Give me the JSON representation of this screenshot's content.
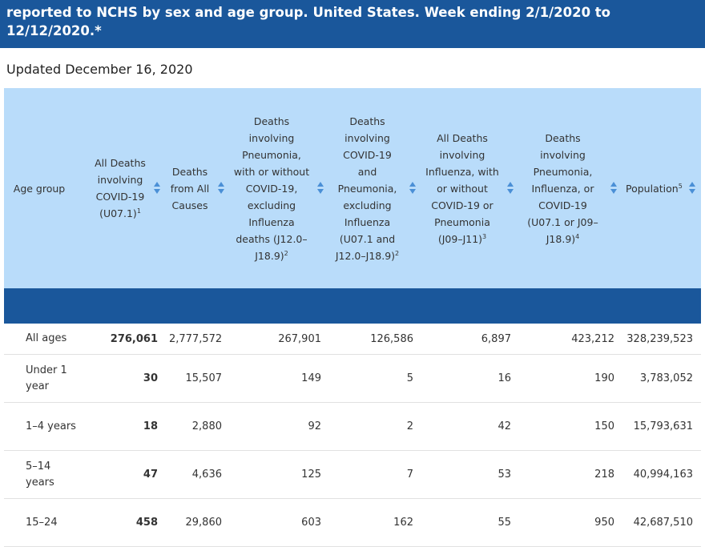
{
  "header": {
    "title": "reported to NCHS by sex and age group. United States. Week ending 2/1/2020 to 12/12/2020.*"
  },
  "updated": "Updated December 16, 2020",
  "columns": [
    {
      "label": "Age group",
      "sup": ""
    },
    {
      "label": "All Deaths involving COVID-19 (U07.1)",
      "sup": "1"
    },
    {
      "label": "Deaths from All Causes",
      "sup": ""
    },
    {
      "label": "Deaths involving Pneumonia, with or without COVID-19, excluding Influenza deaths (J12.0–J18.9)",
      "sup": "2"
    },
    {
      "label": "Deaths involving COVID-19 and Pneumonia, excluding Influenza (U07.1 and J12.0–J18.9)",
      "sup": "2"
    },
    {
      "label": "All Deaths involving Influenza, with or without COVID-19 or Pneumonia (J09–J11)",
      "sup": "3"
    },
    {
      "label": "Deaths involving Pneumonia, Influenza, or COVID-19 (U07.1 or J09–J18.9)",
      "sup": "4"
    },
    {
      "label": "Population",
      "sup": "5"
    }
  ],
  "rows": [
    {
      "age": "All ages",
      "covid": "276,061",
      "all_causes": "2,777,572",
      "pneumonia": "267,901",
      "covid_pneumonia": "126,586",
      "influenza": "6,897",
      "pic": "423,212",
      "population": "328,239,523"
    },
    {
      "age": "Under 1 year",
      "covid": "30",
      "all_causes": "15,507",
      "pneumonia": "149",
      "covid_pneumonia": "5",
      "influenza": "16",
      "pic": "190",
      "population": "3,783,052"
    },
    {
      "age": "1–4 years",
      "covid": "18",
      "all_causes": "2,880",
      "pneumonia": "92",
      "covid_pneumonia": "2",
      "influenza": "42",
      "pic": "150",
      "population": "15,793,631"
    },
    {
      "age": "5–14 years",
      "covid": "47",
      "all_causes": "4,636",
      "pneumonia": "125",
      "covid_pneumonia": "7",
      "influenza": "53",
      "pic": "218",
      "population": "40,994,163"
    },
    {
      "age": "15–24",
      "covid": "458",
      "all_causes": "29,860",
      "pneumonia": "603",
      "covid_pneumonia": "162",
      "influenza": "55",
      "pic": "950",
      "population": "42,687,510"
    }
  ],
  "icons": {
    "sort": "sort-arrows-icon"
  },
  "colors": {
    "header_bg": "#1a579b",
    "thead_bg": "#b9dcfa",
    "sort_icon": "#4a8fd6"
  }
}
